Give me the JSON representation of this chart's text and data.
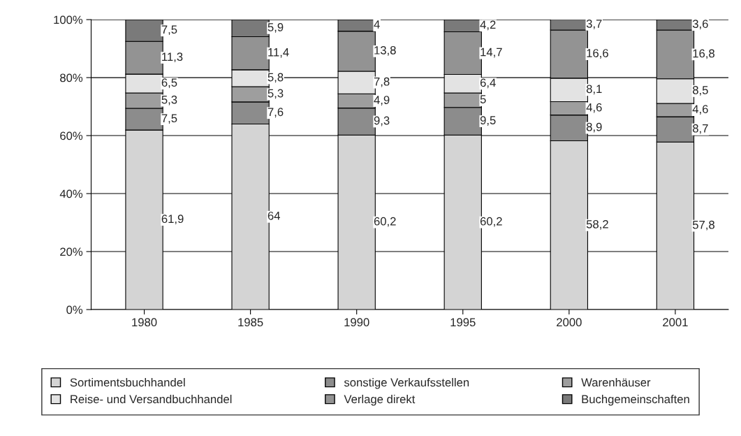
{
  "chart_data": {
    "type": "bar",
    "stacked": true,
    "categories": [
      "1980",
      "1985",
      "1990",
      "1995",
      "2000",
      "2001"
    ],
    "series": [
      {
        "name": "Sortimentsbuchhandel",
        "color": "#d4d4d4",
        "values": [
          61.9,
          64,
          60.2,
          60.2,
          58.2,
          57.8
        ],
        "value_labels": [
          "61,9",
          "64",
          "60,2",
          "60,2",
          "58,2",
          "57,8"
        ]
      },
      {
        "name": "sonstige Verkaufsstellen",
        "color": "#8c8c8c",
        "values": [
          7.5,
          7.6,
          9.3,
          9.5,
          8.9,
          8.7
        ],
        "value_labels": [
          "7,5",
          "7,6",
          "9,3",
          "9,5",
          "8,9",
          "8,7"
        ]
      },
      {
        "name": "Warenhäuser",
        "color": "#9e9e9e",
        "values": [
          5.3,
          5.3,
          4.9,
          5,
          4.6,
          4.6
        ],
        "value_labels": [
          "5,3",
          "5,3",
          "4,9",
          "5",
          "4,6",
          "4,6"
        ]
      },
      {
        "name": "Reise- und Versandbuchhandel",
        "color": "#e3e3e3",
        "values": [
          6.5,
          5.8,
          7.8,
          6.4,
          8.1,
          8.5
        ],
        "value_labels": [
          "6,5",
          "5,8",
          "7,8",
          "6,4",
          "8,1",
          "8,5"
        ]
      },
      {
        "name": "Verlage direkt",
        "color": "#939393",
        "values": [
          11.3,
          11.4,
          13.8,
          14.7,
          16.6,
          16.8
        ],
        "value_labels": [
          "11,3",
          "11,4",
          "13,8",
          "14,7",
          "16,6",
          "16,8"
        ]
      },
      {
        "name": "Buchgemeinschaften",
        "color": "#7a7a7a",
        "values": [
          7.5,
          5.9,
          4,
          4.2,
          3.7,
          3.6
        ],
        "value_labels": [
          "7,5",
          "5,9",
          "4",
          "4,2",
          "3,7",
          "3,6"
        ]
      }
    ],
    "ylim": [
      0,
      100
    ],
    "yticks": [
      {
        "value": 0,
        "label": "0%"
      },
      {
        "value": 20,
        "label": "20%"
      },
      {
        "value": 40,
        "label": "40%"
      },
      {
        "value": 60,
        "label": "60%"
      },
      {
        "value": 80,
        "label": "80%"
      },
      {
        "value": 100,
        "label": "100%"
      }
    ],
    "grid": "y",
    "legend": "bottom"
  }
}
